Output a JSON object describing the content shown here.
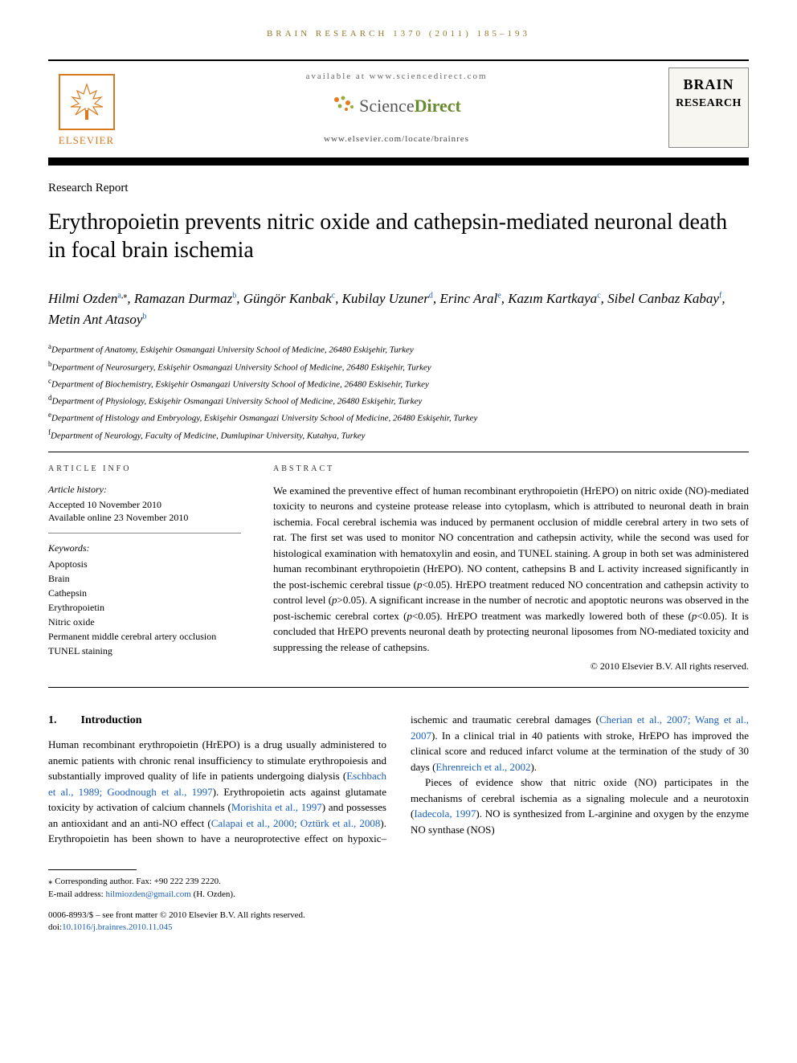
{
  "running_head": "BRAIN RESEARCH 1370 (2011) 185–193",
  "header": {
    "available_at": "available at www.sciencedirect.com",
    "sciencedirect": {
      "prefix": "Science",
      "suffix": "Direct"
    },
    "locate_url": "www.elsevier.com/locate/brainres",
    "elsevier_label": "ELSEVIER",
    "journal_cover_line1": "BRAIN",
    "journal_cover_line2": "RESEARCH"
  },
  "article_type": "Research Report",
  "title": "Erythropoietin prevents nitric oxide and cathepsin-mediated neuronal death in focal brain ischemia",
  "authors": [
    {
      "name": "Hilmi Ozden",
      "aff": "a",
      "corr": true
    },
    {
      "name": "Ramazan Durmaz",
      "aff": "b"
    },
    {
      "name": "Güngör Kanbak",
      "aff": "c"
    },
    {
      "name": "Kubilay Uzuner",
      "aff": "d"
    },
    {
      "name": "Erinc Aral",
      "aff": "e"
    },
    {
      "name": "Kazım Kartkaya",
      "aff": "c"
    },
    {
      "name": "Sibel Canbaz Kabay",
      "aff": "f"
    },
    {
      "name": "Metin Ant Atasoy",
      "aff": "b"
    }
  ],
  "affiliations": [
    {
      "sup": "a",
      "text": "Department of Anatomy, Eskişehir Osmangazi University School of Medicine, 26480 Eskişehir, Turkey"
    },
    {
      "sup": "b",
      "text": "Department of Neurosurgery, Eskişehir Osmangazi University School of Medicine, 26480 Eskişehir, Turkey"
    },
    {
      "sup": "c",
      "text": "Department of Biochemistry, Eskişehir Osmangazi University School of Medicine, 26480 Eskisehir, Turkey"
    },
    {
      "sup": "d",
      "text": "Department of Physiology, Eskişehir Osmangazi University School of Medicine, 26480 Eskişehir, Turkey"
    },
    {
      "sup": "e",
      "text": "Department of Histology and Embryology, Eskişehir Osmangazi University School of Medicine, 26480 Eskişehir, Turkey"
    },
    {
      "sup": "f",
      "text": "Department of Neurology, Faculty of Medicine, Dumlupinar University, Kutahya, Turkey"
    }
  ],
  "article_info": {
    "label": "ARTICLE INFO",
    "history_head": "Article history:",
    "accepted": "Accepted 10 November 2010",
    "online": "Available online 23 November 2010",
    "keywords_head": "Keywords:",
    "keywords": [
      "Apoptosis",
      "Brain",
      "Cathepsin",
      "Erythropoietin",
      "Nitric oxide",
      "Permanent middle cerebral artery occlusion",
      "TUNEL staining"
    ]
  },
  "abstract": {
    "label": "ABSTRACT",
    "text_parts": {
      "p1": "We examined the preventive effect of human recombinant erythropoietin (HrEPO) on nitric oxide (NO)-mediated toxicity to neurons and cysteine protease release into cytoplasm, which is attributed to neuronal death in brain ischemia. Focal cerebral ischemia was induced by permanent occlusion of middle cerebral artery in two sets of rat. The first set was used to monitor NO concentration and cathepsin activity, while the second was used for histological examination with hematoxylin and eosin, and TUNEL staining. A group in both set was administered human recombinant erythropoietin (HrEPO). NO content, cathepsins B and L activity increased significantly in the post-ischemic cerebral tissue (",
      "pval1": "p",
      "p2": "<0.05). HrEPO treatment reduced NO concentration and cathepsin activity to control level (",
      "pval2": "p",
      "p3": ">0.05). A significant increase in the number of necrotic and apoptotic neurons was observed in the post-ischemic cerebral cortex (",
      "pval3": "p",
      "p4": "<0.05). HrEPO treatment was markedly lowered both of these (",
      "pval4": "p",
      "p5": "<0.05). It is concluded that HrEPO prevents neuronal death by protecting neuronal liposomes from NO-mediated toxicity and suppressing the release of cathepsins."
    },
    "copyright": "© 2010 Elsevier B.V. All rights reserved."
  },
  "sections": {
    "intro_num": "1.",
    "intro_title": "Introduction",
    "col1_para": "Human recombinant erythropoietin (HrEPO) is a drug usually administered to anemic patients with chronic renal insufficiency to stimulate erythropoiesis and substantially improved quality of life in patients undergoing dialysis (",
    "cite1": "Eschbach et al., 1989; Goodnough et al., 1997",
    "col1_para2": "). Erythropoietin acts against glutamate toxicity by activation of calcium channels (",
    "cite2": "Morishita et al., 1997",
    "col1_para3": ") and possesses an antioxidant and an anti-NO effect (",
    "cite3": "Calapai et al., 2000; Oztürk et al.,",
    "col2_cite_cont": "2008",
    "col2_para1": "). Erythropoietin has been shown to have a neuroprotective effect on hypoxic–ischemic and traumatic cerebral damages (",
    "cite4": "Cherian et al., 2007; Wang et al., 2007",
    "col2_para2": "). In a clinical trial in 40 patients with stroke, HrEPO has improved the clinical score and reduced infarct volume at the termination of the study of 30 days (",
    "cite5": "Ehrenreich et al., 2002",
    "col2_para3": ").",
    "col2_para4a": "Pieces of evidence show that nitric oxide (NO) participates in the mechanisms of cerebral ischemia as a signaling molecule and a neurotoxin (",
    "cite6": "Iadecola, 1997",
    "col2_para4b": "). NO is synthesized from ",
    "larg": "L",
    "col2_para4c": "-arginine and oxygen by the enzyme NO synthase (NOS)"
  },
  "footnote": {
    "corr_label": "⁎ Corresponding author.",
    "fax": " Fax: +90 222 239 2220.",
    "email_label": "E-mail address: ",
    "email": "hilmiozden@gmail.com",
    "email_who": " (H. Ozden)."
  },
  "doi_block": {
    "line1": "0006-8993/$ – see front matter © 2010 Elsevier B.V. All rights reserved.",
    "doi_label": "doi:",
    "doi": "10.1016/j.brainres.2010.11.045"
  },
  "colors": {
    "running_head": "#96792e",
    "elsevier": "#d97a1f",
    "link": "#1a5fbf",
    "sd_green": "#6a8a2f"
  }
}
